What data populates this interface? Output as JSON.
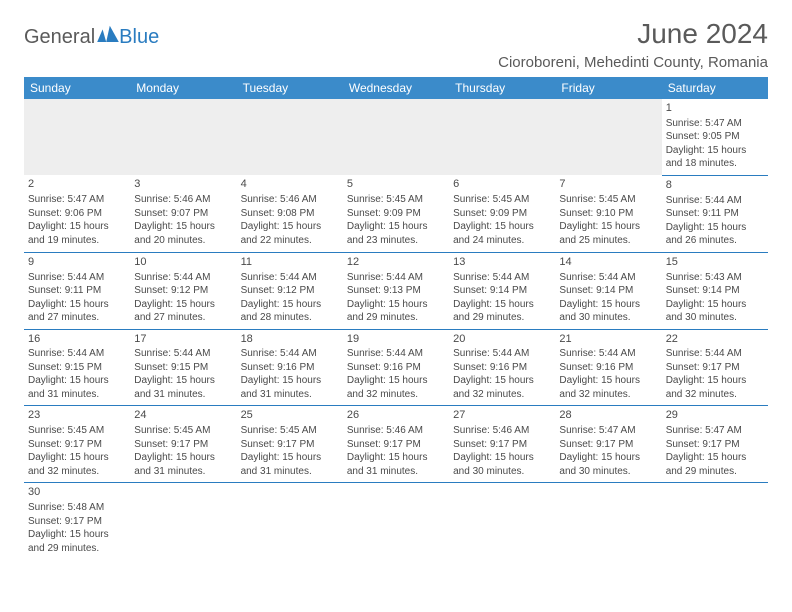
{
  "logo": {
    "part1": "General",
    "part2": "Blue"
  },
  "title": "June 2024",
  "location": "Cioroboreni, Mehedinti County, Romania",
  "weekdays": [
    "Sunday",
    "Monday",
    "Tuesday",
    "Wednesday",
    "Thursday",
    "Friday",
    "Saturday"
  ],
  "colors": {
    "header_bg": "#3b8bca",
    "header_text": "#ffffff",
    "rule": "#2a7cc0",
    "body_text": "#4a4a4a",
    "blank_row_bg": "#eeeeee",
    "logo_accent": "#2a7cc0"
  },
  "fonts": {
    "title_pt": 28,
    "location_pt": 15,
    "weekday_pt": 12,
    "body_pt": 10,
    "daynum_pt": 11
  },
  "days": {
    "1": {
      "sunrise": "5:47 AM",
      "sunset": "9:05 PM",
      "daylight": "15 hours and 18 minutes."
    },
    "2": {
      "sunrise": "5:47 AM",
      "sunset": "9:06 PM",
      "daylight": "15 hours and 19 minutes."
    },
    "3": {
      "sunrise": "5:46 AM",
      "sunset": "9:07 PM",
      "daylight": "15 hours and 20 minutes."
    },
    "4": {
      "sunrise": "5:46 AM",
      "sunset": "9:08 PM",
      "daylight": "15 hours and 22 minutes."
    },
    "5": {
      "sunrise": "5:45 AM",
      "sunset": "9:09 PM",
      "daylight": "15 hours and 23 minutes."
    },
    "6": {
      "sunrise": "5:45 AM",
      "sunset": "9:09 PM",
      "daylight": "15 hours and 24 minutes."
    },
    "7": {
      "sunrise": "5:45 AM",
      "sunset": "9:10 PM",
      "daylight": "15 hours and 25 minutes."
    },
    "8": {
      "sunrise": "5:44 AM",
      "sunset": "9:11 PM",
      "daylight": "15 hours and 26 minutes."
    },
    "9": {
      "sunrise": "5:44 AM",
      "sunset": "9:11 PM",
      "daylight": "15 hours and 27 minutes."
    },
    "10": {
      "sunrise": "5:44 AM",
      "sunset": "9:12 PM",
      "daylight": "15 hours and 27 minutes."
    },
    "11": {
      "sunrise": "5:44 AM",
      "sunset": "9:12 PM",
      "daylight": "15 hours and 28 minutes."
    },
    "12": {
      "sunrise": "5:44 AM",
      "sunset": "9:13 PM",
      "daylight": "15 hours and 29 minutes."
    },
    "13": {
      "sunrise": "5:44 AM",
      "sunset": "9:14 PM",
      "daylight": "15 hours and 29 minutes."
    },
    "14": {
      "sunrise": "5:44 AM",
      "sunset": "9:14 PM",
      "daylight": "15 hours and 30 minutes."
    },
    "15": {
      "sunrise": "5:43 AM",
      "sunset": "9:14 PM",
      "daylight": "15 hours and 30 minutes."
    },
    "16": {
      "sunrise": "5:44 AM",
      "sunset": "9:15 PM",
      "daylight": "15 hours and 31 minutes."
    },
    "17": {
      "sunrise": "5:44 AM",
      "sunset": "9:15 PM",
      "daylight": "15 hours and 31 minutes."
    },
    "18": {
      "sunrise": "5:44 AM",
      "sunset": "9:16 PM",
      "daylight": "15 hours and 31 minutes."
    },
    "19": {
      "sunrise": "5:44 AM",
      "sunset": "9:16 PM",
      "daylight": "15 hours and 32 minutes."
    },
    "20": {
      "sunrise": "5:44 AM",
      "sunset": "9:16 PM",
      "daylight": "15 hours and 32 minutes."
    },
    "21": {
      "sunrise": "5:44 AM",
      "sunset": "9:16 PM",
      "daylight": "15 hours and 32 minutes."
    },
    "22": {
      "sunrise": "5:44 AM",
      "sunset": "9:17 PM",
      "daylight": "15 hours and 32 minutes."
    },
    "23": {
      "sunrise": "5:45 AM",
      "sunset": "9:17 PM",
      "daylight": "15 hours and 32 minutes."
    },
    "24": {
      "sunrise": "5:45 AM",
      "sunset": "9:17 PM",
      "daylight": "15 hours and 31 minutes."
    },
    "25": {
      "sunrise": "5:45 AM",
      "sunset": "9:17 PM",
      "daylight": "15 hours and 31 minutes."
    },
    "26": {
      "sunrise": "5:46 AM",
      "sunset": "9:17 PM",
      "daylight": "15 hours and 31 minutes."
    },
    "27": {
      "sunrise": "5:46 AM",
      "sunset": "9:17 PM",
      "daylight": "15 hours and 30 minutes."
    },
    "28": {
      "sunrise": "5:47 AM",
      "sunset": "9:17 PM",
      "daylight": "15 hours and 30 minutes."
    },
    "29": {
      "sunrise": "5:47 AM",
      "sunset": "9:17 PM",
      "daylight": "15 hours and 29 minutes."
    },
    "30": {
      "sunrise": "5:48 AM",
      "sunset": "9:17 PM",
      "daylight": "15 hours and 29 minutes."
    }
  },
  "layout": {
    "first_weekday_index": 6,
    "num_days": 30,
    "columns": 7
  }
}
